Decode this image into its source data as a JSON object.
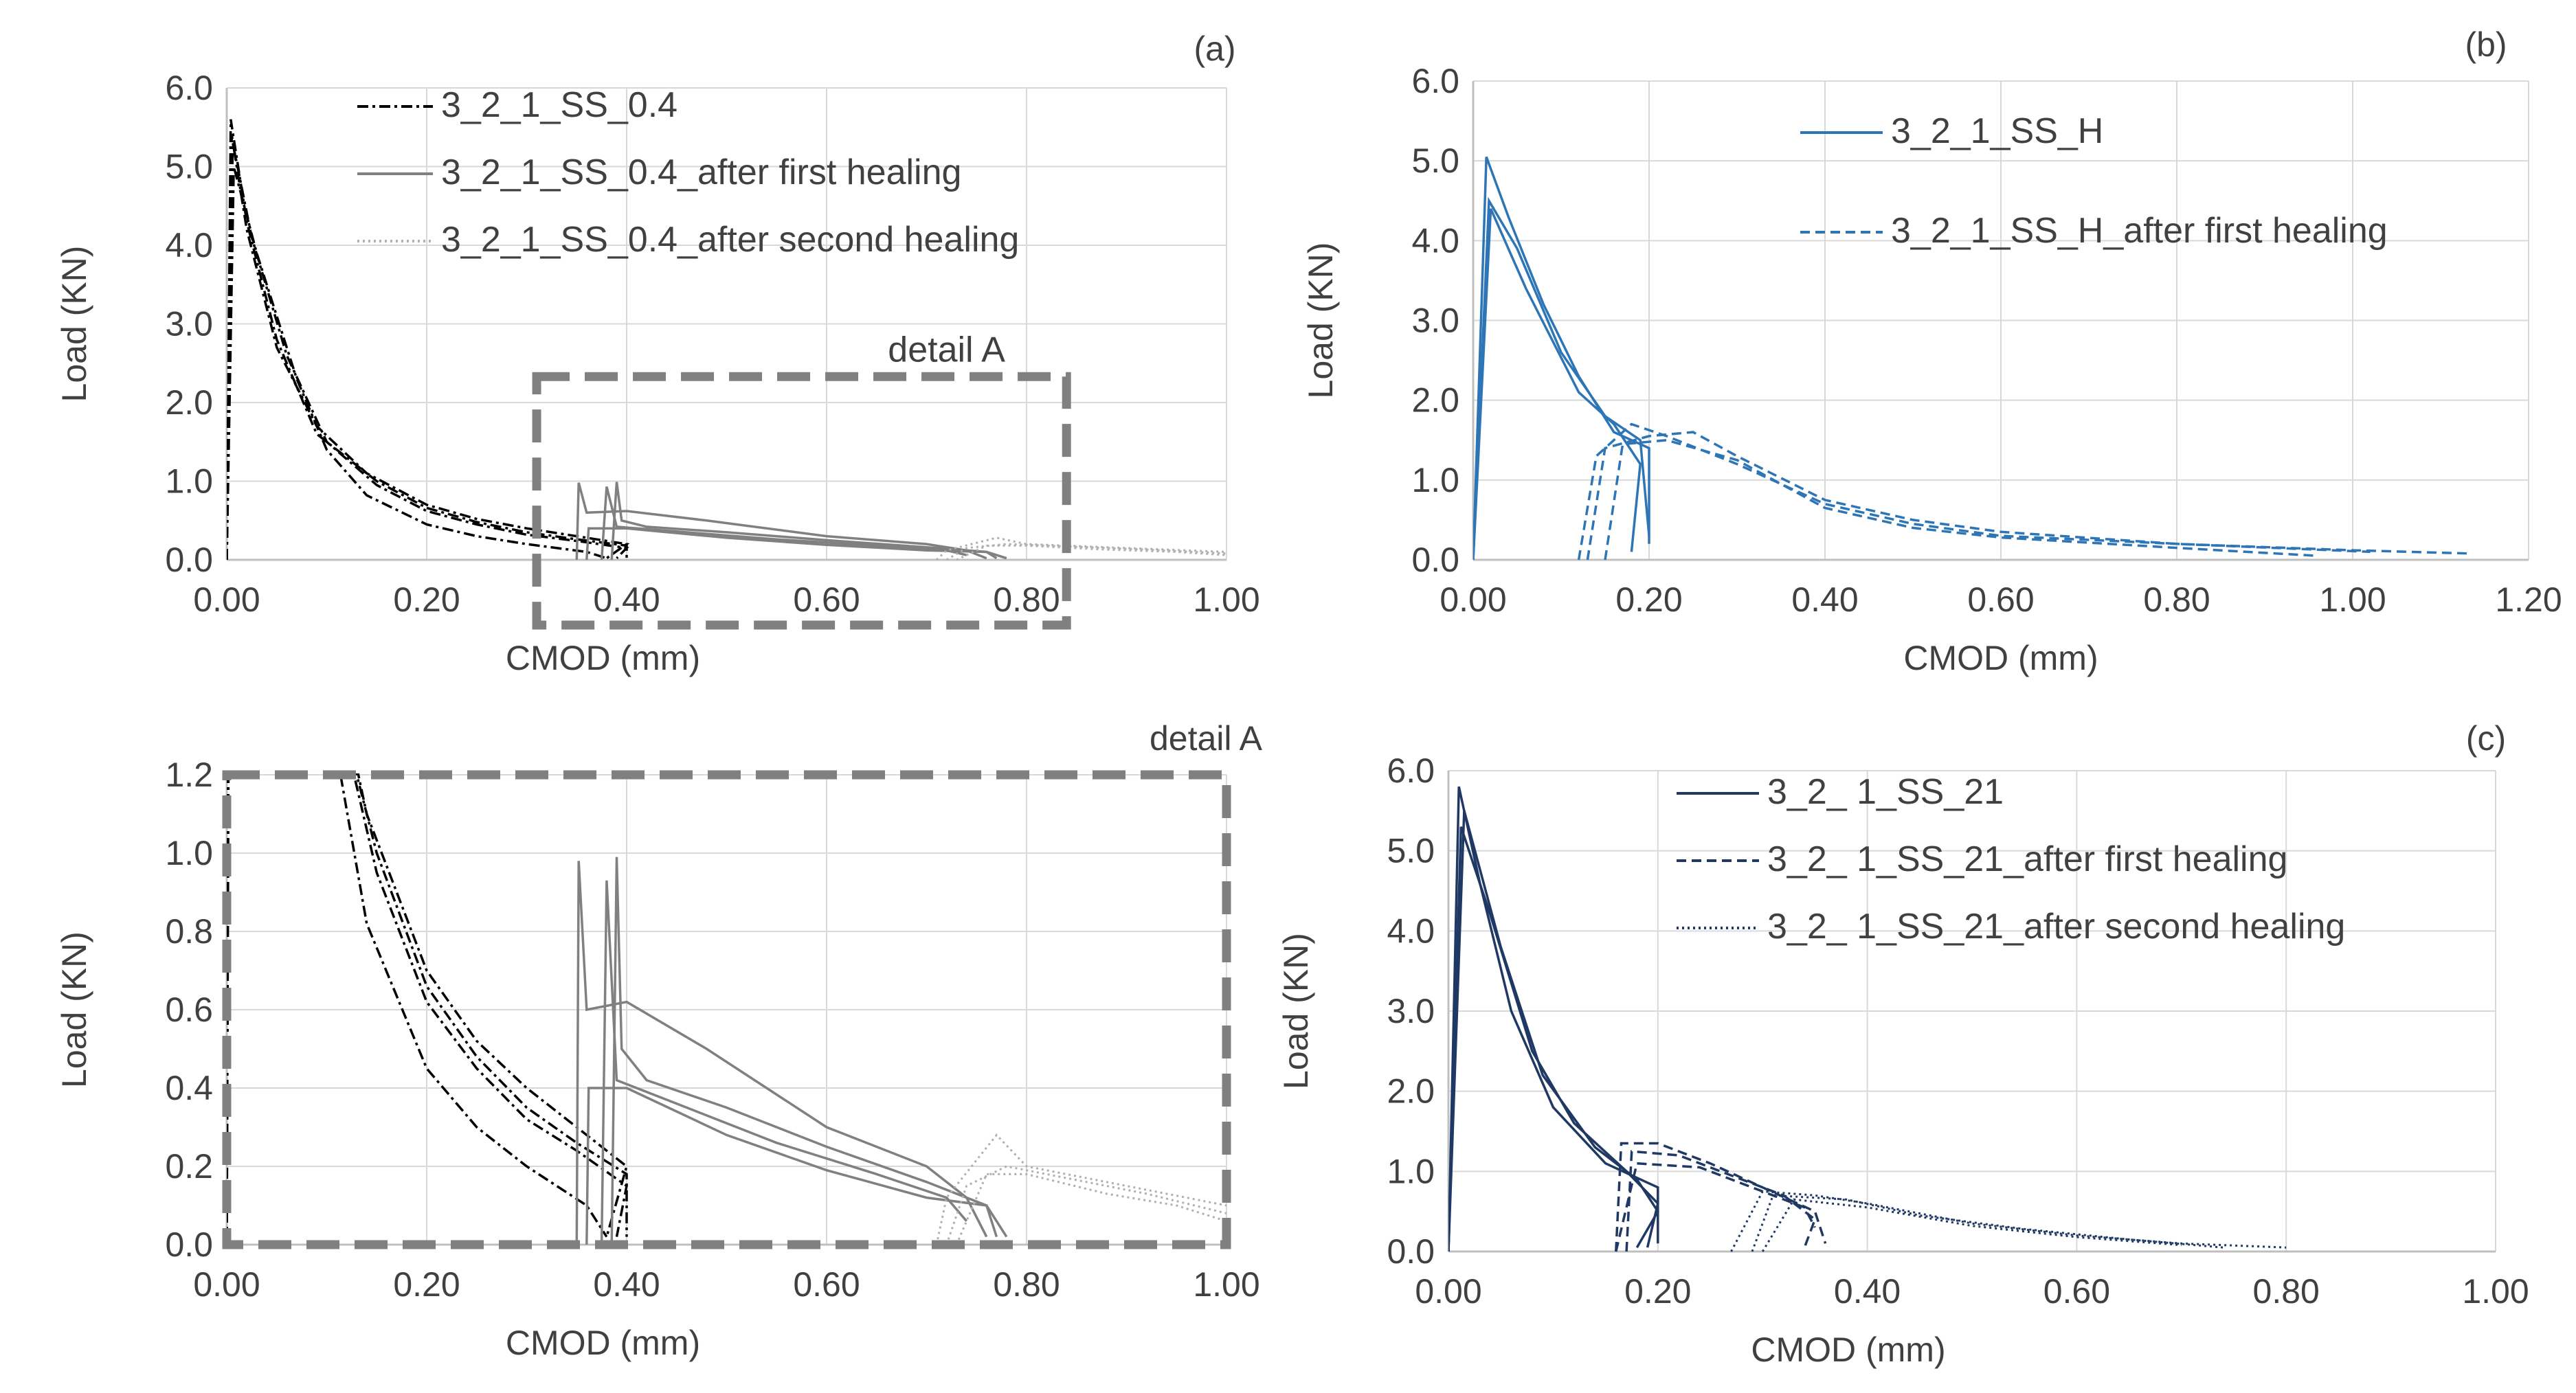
{
  "chart_data": [
    {
      "id": "a",
      "type": "line",
      "panel_label": "(a)",
      "xlabel": "CMOD (mm)",
      "ylabel": "Load (KN)",
      "xlim": [
        0,
        1.0
      ],
      "ylim": [
        0,
        6.0
      ],
      "xticks": [
        "0.00",
        "0.20",
        "0.40",
        "0.60",
        "0.80",
        "1.00"
      ],
      "yticks": [
        "0.0",
        "1.0",
        "2.0",
        "3.0",
        "4.0",
        "5.0",
        "6.0"
      ],
      "grid": true,
      "legend_position": "top-center",
      "annotation": "detail A",
      "legend": [
        {
          "name": "3_2_1_SS_0.4",
          "color": "#000000",
          "dash": "dashdot"
        },
        {
          "name": "3_2_1_SS_0.4_after first healing",
          "color": "#808080",
          "dash": "solid"
        },
        {
          "name": "3_2_1_SS_0.4_after second healing",
          "color": "#b0b0b0",
          "dash": "dotted"
        }
      ],
      "curves": [
        {
          "series": 0,
          "points": [
            [
              0,
              0
            ],
            [
              0.004,
              5.6
            ],
            [
              0.02,
              4.3
            ],
            [
              0.05,
              2.8
            ],
            [
              0.09,
              1.6
            ],
            [
              0.15,
              1.0
            ],
            [
              0.2,
              0.66
            ],
            [
              0.25,
              0.48
            ],
            [
              0.3,
              0.35
            ],
            [
              0.35,
              0.26
            ],
            [
              0.4,
              0.18
            ],
            [
              0.4,
              0.02
            ]
          ]
        },
        {
          "series": 0,
          "points": [
            [
              0,
              0
            ],
            [
              0.006,
              5.3
            ],
            [
              0.025,
              4.1
            ],
            [
              0.06,
              2.6
            ],
            [
              0.1,
              1.5
            ],
            [
              0.15,
              0.95
            ],
            [
              0.2,
              0.62
            ],
            [
              0.25,
              0.45
            ],
            [
              0.3,
              0.32
            ],
            [
              0.35,
              0.24
            ],
            [
              0.4,
              0.15
            ],
            [
              0.39,
              0.02
            ]
          ]
        },
        {
          "series": 0,
          "points": [
            [
              0,
              0
            ],
            [
              0.005,
              5.4
            ],
            [
              0.02,
              4.2
            ],
            [
              0.05,
              2.7
            ],
            [
              0.09,
              1.7
            ],
            [
              0.14,
              1.1
            ],
            [
              0.2,
              0.7
            ],
            [
              0.25,
              0.52
            ],
            [
              0.3,
              0.4
            ],
            [
              0.35,
              0.3
            ],
            [
              0.4,
              0.2
            ],
            [
              0.38,
              0.02
            ]
          ]
        },
        {
          "series": 0,
          "points": [
            [
              0,
              0
            ],
            [
              0.007,
              5.0
            ],
            [
              0.03,
              3.9
            ],
            [
              0.07,
              2.3
            ],
            [
              0.1,
              1.4
            ],
            [
              0.14,
              0.82
            ],
            [
              0.2,
              0.45
            ],
            [
              0.25,
              0.3
            ],
            [
              0.3,
              0.2
            ],
            [
              0.36,
              0.1
            ],
            [
              0.38,
              0.02
            ]
          ]
        },
        {
          "series": 1,
          "points": [
            [
              0.35,
              0
            ],
            [
              0.352,
              0.98
            ],
            [
              0.36,
              0.6
            ],
            [
              0.4,
              0.62
            ],
            [
              0.48,
              0.5
            ],
            [
              0.6,
              0.3
            ],
            [
              0.7,
              0.2
            ],
            [
              0.74,
              0.12
            ],
            [
              0.76,
              0.02
            ]
          ]
        },
        {
          "series": 1,
          "points": [
            [
              0.385,
              0
            ],
            [
              0.39,
              0.99
            ],
            [
              0.395,
              0.5
            ],
            [
              0.42,
              0.42
            ],
            [
              0.5,
              0.35
            ],
            [
              0.6,
              0.25
            ],
            [
              0.7,
              0.16
            ],
            [
              0.76,
              0.1
            ],
            [
              0.77,
              0.02
            ]
          ]
        },
        {
          "series": 1,
          "points": [
            [
              0.375,
              0
            ],
            [
              0.38,
              0.93
            ],
            [
              0.39,
              0.42
            ],
            [
              0.45,
              0.36
            ],
            [
              0.55,
              0.26
            ],
            [
              0.65,
              0.18
            ],
            [
              0.72,
              0.12
            ],
            [
              0.74,
              0.06
            ]
          ]
        },
        {
          "series": 1,
          "points": [
            [
              0.36,
              0
            ],
            [
              0.362,
              0.4
            ],
            [
              0.4,
              0.4
            ],
            [
              0.5,
              0.28
            ],
            [
              0.6,
              0.19
            ],
            [
              0.7,
              0.12
            ],
            [
              0.76,
              0.1
            ],
            [
              0.78,
              0.02
            ]
          ]
        },
        {
          "series": 2,
          "points": [
            [
              0.71,
              0
            ],
            [
              0.72,
              0.12
            ],
            [
              0.77,
              0.28
            ],
            [
              0.8,
              0.2
            ],
            [
              0.88,
              0.16
            ],
            [
              1.0,
              0.1
            ]
          ]
        },
        {
          "series": 2,
          "points": [
            [
              0.72,
              0
            ],
            [
              0.74,
              0.15
            ],
            [
              0.78,
              0.2
            ],
            [
              0.84,
              0.17
            ],
            [
              0.92,
              0.13
            ],
            [
              1.0,
              0.08
            ]
          ]
        },
        {
          "series": 2,
          "points": [
            [
              0.73,
              0
            ],
            [
              0.76,
              0.18
            ],
            [
              0.8,
              0.18
            ],
            [
              0.88,
              0.13
            ],
            [
              0.95,
              0.1
            ],
            [
              1.0,
              0.06
            ]
          ]
        }
      ]
    },
    {
      "id": "b",
      "type": "line",
      "panel_label": "(b)",
      "xlabel": "CMOD (mm)",
      "ylabel": "Load (KN)",
      "xlim": [
        0,
        1.2
      ],
      "ylim": [
        0,
        6.0
      ],
      "xticks": [
        "0.00",
        "0.20",
        "0.40",
        "0.60",
        "0.80",
        "1.00",
        "1.20"
      ],
      "yticks": [
        "0.0",
        "1.0",
        "2.0",
        "3.0",
        "4.0",
        "5.0",
        "6.0"
      ],
      "grid": true,
      "legend_position": "top-center",
      "legend": [
        {
          "name": "3_2_1_SS_H",
          "color": "#2e75b6",
          "dash": "solid"
        },
        {
          "name": "3_2_1_SS_H_after first healing",
          "color": "#2e75b6",
          "dash": "dashed"
        }
      ],
      "curves": [
        {
          "series": 0,
          "points": [
            [
              0,
              0
            ],
            [
              0.015,
              5.05
            ],
            [
              0.04,
              4.3
            ],
            [
              0.08,
              3.2
            ],
            [
              0.12,
              2.3
            ],
            [
              0.16,
              1.6
            ],
            [
              0.2,
              1.4
            ],
            [
              0.2,
              0.2
            ]
          ]
        },
        {
          "series": 0,
          "points": [
            [
              0,
              0
            ],
            [
              0.018,
              4.5
            ],
            [
              0.05,
              3.9
            ],
            [
              0.1,
              2.6
            ],
            [
              0.15,
              1.8
            ],
            [
              0.19,
              1.5
            ],
            [
              0.2,
              0.3
            ]
          ]
        },
        {
          "series": 0,
          "points": [
            [
              0,
              0
            ],
            [
              0.02,
              4.4
            ],
            [
              0.06,
              3.4
            ],
            [
              0.12,
              2.1
            ],
            [
              0.16,
              1.7
            ],
            [
              0.19,
              1.2
            ],
            [
              0.18,
              0.1
            ]
          ]
        },
        {
          "series": 1,
          "points": [
            [
              0.12,
              0
            ],
            [
              0.14,
              1.3
            ],
            [
              0.18,
              1.7
            ],
            [
              0.22,
              1.55
            ],
            [
              0.3,
              1.2
            ],
            [
              0.4,
              0.7
            ],
            [
              0.5,
              0.45
            ],
            [
              0.6,
              0.3
            ],
            [
              0.8,
              0.2
            ],
            [
              1.0,
              0.12
            ],
            [
              1.13,
              0.08
            ]
          ]
        },
        {
          "series": 1,
          "points": [
            [
              0.13,
              0
            ],
            [
              0.15,
              1.4
            ],
            [
              0.2,
              1.55
            ],
            [
              0.25,
              1.6
            ],
            [
              0.3,
              1.3
            ],
            [
              0.4,
              0.75
            ],
            [
              0.5,
              0.5
            ],
            [
              0.6,
              0.35
            ],
            [
              0.8,
              0.2
            ],
            [
              1.02,
              0.1
            ]
          ]
        },
        {
          "series": 1,
          "points": [
            [
              0.15,
              0
            ],
            [
              0.17,
              1.45
            ],
            [
              0.22,
              1.5
            ],
            [
              0.3,
              1.25
            ],
            [
              0.4,
              0.65
            ],
            [
              0.5,
              0.4
            ],
            [
              0.6,
              0.28
            ],
            [
              0.8,
              0.15
            ],
            [
              0.96,
              0.05
            ]
          ]
        }
      ]
    },
    {
      "id": "detailA",
      "type": "line",
      "panel_label": "detail A",
      "xlabel": "CMOD (mm)",
      "ylabel": "Load (KN)",
      "xlim": [
        0,
        1.0
      ],
      "ylim": [
        0,
        1.2
      ],
      "xticks": [
        "0.00",
        "0.20",
        "0.40",
        "0.60",
        "0.80",
        "1.00"
      ],
      "yticks": [
        "0.0",
        "0.2",
        "0.4",
        "0.6",
        "0.8",
        "1.0",
        "1.2"
      ],
      "grid": true,
      "curves_source": "a"
    },
    {
      "id": "c",
      "type": "line",
      "panel_label": "(c)",
      "xlabel": "CMOD (mm)",
      "ylabel": "Load (KN)",
      "xlim": [
        0,
        1.0
      ],
      "ylim": [
        0,
        6.0
      ],
      "xticks": [
        "0.00",
        "0.20",
        "0.40",
        "0.60",
        "0.80",
        "1.00"
      ],
      "yticks": [
        "0.0",
        "1.0",
        "2.0",
        "3.0",
        "4.0",
        "5.0",
        "6.0"
      ],
      "grid": true,
      "legend_position": "top-center",
      "legend": [
        {
          "name": "3_2_ 1_SS_21",
          "color": "#1f3864",
          "dash": "solid"
        },
        {
          "name": "3_2_ 1_SS_21_after first healing",
          "color": "#1f3864",
          "dash": "dashed"
        },
        {
          "name": "3_2_ 1_SS_21_after second healing",
          "color": "#1f3864",
          "dash": "dotted"
        }
      ],
      "curves": [
        {
          "series": 0,
          "points": [
            [
              0,
              0
            ],
            [
              0.01,
              5.8
            ],
            [
              0.03,
              4.6
            ],
            [
              0.06,
              3.0
            ],
            [
              0.1,
              1.8
            ],
            [
              0.15,
              1.1
            ],
            [
              0.2,
              0.8
            ],
            [
              0.2,
              0.1
            ]
          ]
        },
        {
          "series": 0,
          "points": [
            [
              0,
              0
            ],
            [
              0.012,
              5.3
            ],
            [
              0.04,
              4.2
            ],
            [
              0.08,
              2.5
            ],
            [
              0.12,
              1.6
            ],
            [
              0.17,
              1.0
            ],
            [
              0.2,
              0.6
            ],
            [
              0.19,
              0.05
            ]
          ]
        },
        {
          "series": 0,
          "points": [
            [
              0,
              0
            ],
            [
              0.015,
              5.5
            ],
            [
              0.05,
              3.8
            ],
            [
              0.09,
              2.2
            ],
            [
              0.14,
              1.3
            ],
            [
              0.18,
              0.9
            ],
            [
              0.2,
              0.5
            ],
            [
              0.18,
              0.05
            ]
          ]
        },
        {
          "series": 1,
          "points": [
            [
              0.16,
              0
            ],
            [
              0.165,
              1.35
            ],
            [
              0.2,
              1.35
            ],
            [
              0.25,
              1.1
            ],
            [
              0.3,
              0.8
            ],
            [
              0.35,
              0.5
            ],
            [
              0.36,
              0.1
            ]
          ]
        },
        {
          "series": 1,
          "points": [
            [
              0.17,
              0
            ],
            [
              0.175,
              1.25
            ],
            [
              0.22,
              1.2
            ],
            [
              0.27,
              0.95
            ],
            [
              0.32,
              0.7
            ],
            [
              0.35,
              0.4
            ],
            [
              0.34,
              0.05
            ]
          ]
        },
        {
          "series": 1,
          "points": [
            [
              0.16,
              0
            ],
            [
              0.18,
              1.1
            ],
            [
              0.24,
              1.05
            ],
            [
              0.3,
              0.75
            ],
            [
              0.34,
              0.55
            ],
            [
              0.35,
              0.3
            ]
          ]
        },
        {
          "series": 2,
          "points": [
            [
              0.27,
              0
            ],
            [
              0.3,
              0.75
            ],
            [
              0.35,
              0.7
            ],
            [
              0.4,
              0.6
            ],
            [
              0.5,
              0.35
            ],
            [
              0.6,
              0.2
            ],
            [
              0.7,
              0.1
            ],
            [
              0.8,
              0.05
            ]
          ]
        },
        {
          "series": 2,
          "points": [
            [
              0.29,
              0
            ],
            [
              0.31,
              0.7
            ],
            [
              0.38,
              0.65
            ],
            [
              0.45,
              0.45
            ],
            [
              0.55,
              0.28
            ],
            [
              0.65,
              0.15
            ],
            [
              0.74,
              0.05
            ]
          ]
        },
        {
          "series": 2,
          "points": [
            [
              0.3,
              0
            ],
            [
              0.33,
              0.65
            ],
            [
              0.4,
              0.55
            ],
            [
              0.5,
              0.32
            ],
            [
              0.6,
              0.18
            ],
            [
              0.7,
              0.08
            ]
          ]
        }
      ]
    }
  ]
}
